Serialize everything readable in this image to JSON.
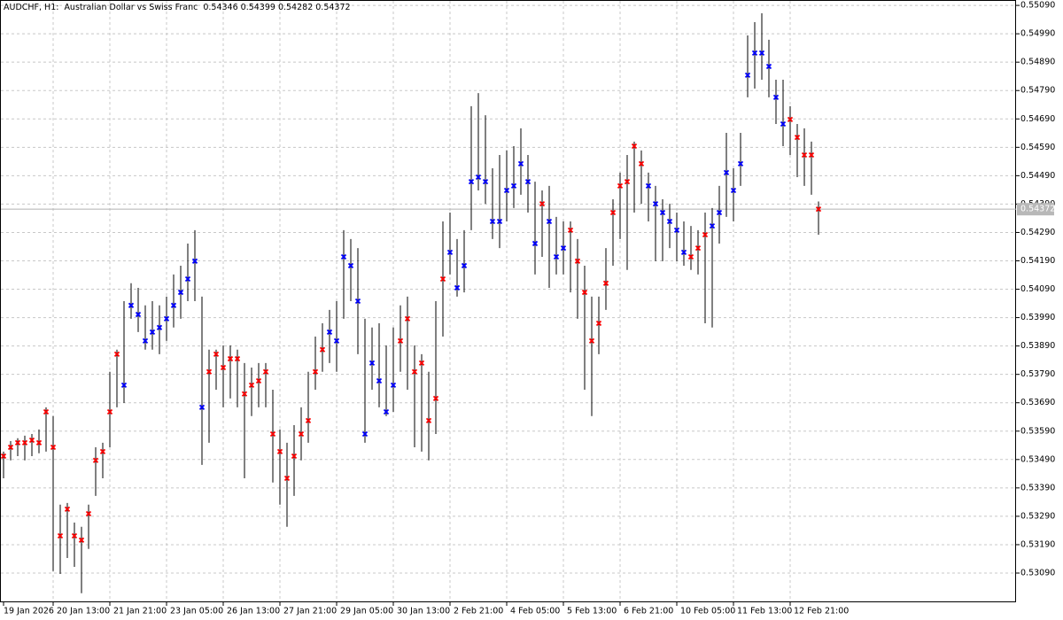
{
  "chart_data": {
    "type": "hl_bars",
    "symbol": "AUDCHF, H1:",
    "description": "Australian Dollar vs Swiss Franc",
    "ohlc": [
      0.54346,
      0.54399,
      0.54282,
      0.54372
    ],
    "last_price": 0.54372,
    "bar_color": "#000000",
    "grid": true,
    "ylim": [
      0.52987,
      0.55109
    ],
    "yticks": [
      {
        "value": 0.5309,
        "label": "0.53090"
      },
      {
        "value": 0.5319,
        "label": "0.53190"
      },
      {
        "value": 0.5329,
        "label": "0.53290"
      },
      {
        "value": 0.5339,
        "label": "0.53390"
      },
      {
        "value": 0.5349,
        "label": "0.53490"
      },
      {
        "value": 0.5359,
        "label": "0.53590"
      },
      {
        "value": 0.5369,
        "label": "0.53690"
      },
      {
        "value": 0.5379,
        "label": "0.53790"
      },
      {
        "value": 0.5389,
        "label": "0.53890"
      },
      {
        "value": 0.5399,
        "label": "0.53990"
      },
      {
        "value": 0.5409,
        "label": "0.54090"
      },
      {
        "value": 0.5419,
        "label": "0.54190"
      },
      {
        "value": 0.5429,
        "label": "0.54290"
      },
      {
        "value": 0.5439,
        "label": "0.54390"
      },
      {
        "value": 0.5449,
        "label": "0.54490"
      },
      {
        "value": 0.5459,
        "label": "0.54590"
      },
      {
        "value": 0.5469,
        "label": "0.54690"
      },
      {
        "value": 0.5479,
        "label": "0.54790"
      },
      {
        "value": 0.5489,
        "label": "0.54890"
      },
      {
        "value": 0.5499,
        "label": "0.54990"
      },
      {
        "value": 0.5509,
        "label": "0.55090"
      }
    ],
    "categories": [
      "19 Jan 2026",
      null,
      null,
      null,
      null,
      null,
      null,
      "20 Jan 13:00",
      null,
      null,
      null,
      null,
      null,
      null,
      null,
      "21 Jan 21:00",
      null,
      null,
      null,
      null,
      null,
      null,
      null,
      "23 Jan 05:00",
      null,
      null,
      null,
      null,
      null,
      null,
      null,
      "26 Jan 13:00",
      null,
      null,
      null,
      null,
      null,
      null,
      null,
      "27 Jan 21:00",
      null,
      null,
      null,
      null,
      null,
      null,
      null,
      "29 Jan 05:00",
      null,
      null,
      null,
      null,
      null,
      null,
      null,
      "30 Jan 13:00",
      null,
      null,
      null,
      null,
      null,
      null,
      null,
      "2 Feb 21:00",
      null,
      null,
      null,
      null,
      null,
      null,
      null,
      "4 Feb 05:00",
      null,
      null,
      null,
      null,
      null,
      null,
      null,
      "5 Feb 13:00",
      null,
      null,
      null,
      null,
      null,
      null,
      null,
      "6 Feb 21:00",
      null,
      null,
      null,
      null,
      null,
      null,
      null,
      "10 Feb 05:00",
      null,
      null,
      null,
      null,
      null,
      null,
      null,
      "11 Feb 13:00",
      null,
      null,
      null,
      null,
      null,
      null,
      null,
      "12 Feb 21:00",
      null,
      null,
      null,
      null
    ],
    "high": [
      0.53518,
      0.53555,
      0.53565,
      0.53574,
      0.5358,
      0.53596,
      0.53674,
      0.53643,
      0.53331,
      0.53337,
      0.53268,
      0.53253,
      0.53331,
      0.53533,
      0.53549,
      0.53799,
      0.53877,
      0.54048,
      0.54111,
      0.54095,
      0.54033,
      0.54048,
      0.54033,
      0.54064,
      0.54142,
      0.54173,
      0.54251,
      0.54298,
      0.54064,
      0.53877,
      0.53877,
      0.53892,
      0.53892,
      0.53877,
      0.5383,
      0.53814,
      0.5383,
      0.5383,
      0.53736,
      0.53596,
      0.53549,
      0.53611,
      0.53674,
      0.53799,
      0.53923,
      0.5397,
      0.54017,
      0.54048,
      0.54298,
      0.54267,
      0.54235,
      0.53986,
      0.53955,
      0.5397,
      0.53892,
      0.53955,
      0.54033,
      0.54064,
      0.53892,
      0.53861,
      0.53799,
      0.54048,
      0.54329,
      0.5436,
      0.54267,
      0.54298,
      0.54735,
      0.54781,
      0.54703,
      0.54516,
      0.54563,
      0.54579,
      0.54594,
      0.54657,
      0.54563,
      0.54469,
      0.54438,
      0.54454,
      0.54345,
      0.54329,
      0.54329,
      0.54267,
      0.54173,
      0.54064,
      0.54064,
      0.54235,
      0.54407,
      0.54501,
      0.54563,
      0.5461,
      0.54579,
      0.54501,
      0.54454,
      0.54407,
      0.54391,
      0.5436,
      0.54329,
      0.54313,
      0.54298,
      0.5436,
      0.54376,
      0.54454,
      0.54641,
      0.54516,
      0.54641,
      0.54984,
      0.55031,
      0.55062,
      0.54969,
      0.54828,
      0.54828,
      0.54735,
      0.54672,
      0.54657,
      0.5461,
      0.54399
    ],
    "low": [
      0.53424,
      0.53487,
      0.53502,
      0.53487,
      0.53502,
      0.53512,
      0.53518,
      0.53097,
      0.53087,
      0.53143,
      0.53112,
      0.53019,
      0.53175,
      0.53362,
      0.53424,
      0.53533,
      0.53674,
      0.53689,
      0.53986,
      0.53939,
      0.53877,
      0.53877,
      0.53861,
      0.53908,
      0.53955,
      0.53986,
      0.54048,
      0.54048,
      0.53471,
      0.53549,
      0.53736,
      0.53674,
      0.53705,
      0.53674,
      0.53424,
      0.53643,
      0.53674,
      0.53674,
      0.53409,
      0.53331,
      0.53253,
      0.53362,
      0.53487,
      0.53549,
      0.53736,
      0.53799,
      0.5383,
      0.53799,
      0.53986,
      0.54048,
      0.53861,
      0.53549,
      0.53736,
      0.53674,
      0.53643,
      0.53658,
      0.53799,
      0.53736,
      0.53533,
      0.53518,
      0.53487,
      0.5358,
      0.53923,
      0.54142,
      0.54064,
      0.54079,
      0.54298,
      0.54438,
      0.54391,
      0.54267,
      0.54235,
      0.54329,
      0.54376,
      0.54423,
      0.5436,
      0.54142,
      0.54204,
      0.54095,
      0.54142,
      0.54142,
      0.54079,
      0.53986,
      0.53736,
      0.53643,
      0.53861,
      0.54017,
      0.54173,
      0.54267,
      0.54158,
      0.5436,
      0.54391,
      0.54329,
      0.54189,
      0.54189,
      0.54235,
      0.54189,
      0.54173,
      0.54158,
      0.54142,
      0.5397,
      0.53955,
      0.54251,
      0.54345,
      0.54329,
      0.54454,
      0.54766,
      0.54797,
      0.54828,
      0.54766,
      0.54672,
      0.54594,
      0.54563,
      0.54485,
      0.54454,
      0.54423,
      0.54282
    ],
    "close": [
      0.53502,
      0.53533,
      0.53549,
      0.53549,
      0.53558,
      0.53549,
      0.53658,
      0.53533,
      0.53221,
      0.53315,
      0.53221,
      0.53206,
      0.53299,
      0.53487,
      0.53518,
      0.53658,
      0.53861,
      0.53752,
      0.54033,
      0.54001,
      0.53908,
      0.53939,
      0.53955,
      0.53986,
      0.54033,
      0.54079,
      0.54126,
      0.54189,
      0.53674,
      0.53799,
      0.53861,
      0.53814,
      0.53845,
      0.53845,
      0.53721,
      0.53752,
      0.53767,
      0.53799,
      0.5358,
      0.53518,
      0.53424,
      0.53502,
      0.5358,
      0.53627,
      0.53799,
      0.53877,
      0.53939,
      0.53908,
      0.54204,
      0.54173,
      0.54048,
      0.5358,
      0.5383,
      0.53767,
      0.53658,
      0.53752,
      0.53908,
      0.53986,
      0.53799,
      0.5383,
      0.53627,
      0.53705,
      0.54126,
      0.5422,
      0.54095,
      0.54173,
      0.54469,
      0.54485,
      0.54469,
      0.54329,
      0.54329,
      0.54438,
      0.54454,
      0.54532,
      0.54469,
      0.54251,
      0.54391,
      0.54329,
      0.54204,
      0.54235,
      0.54298,
      0.54189,
      0.54079,
      0.53908,
      0.5397,
      0.54111,
      0.5436,
      0.54454,
      0.54469,
      0.54594,
      0.54532,
      0.54454,
      0.54391,
      0.5436,
      0.54329,
      0.54298,
      0.5422,
      0.54204,
      0.54235,
      0.54282,
      0.54313,
      0.5436,
      0.54501,
      0.54438,
      0.54532,
      0.54844,
      0.54922,
      0.54922,
      0.54875,
      0.54766,
      0.54672,
      0.54688,
      0.54625,
      0.54563,
      0.54563,
      0.54372
    ],
    "marker_colors": [
      "#f00",
      "#f00",
      "#f00",
      "#f00",
      "#f00",
      "#f00",
      "#f00",
      "#f00",
      "#f00",
      "#f00",
      "#f00",
      "#f00",
      "#f00",
      "#f00",
      "#f00",
      "#f00",
      "#f00",
      "#00f",
      "#00f",
      "#00f",
      "#00f",
      "#00f",
      "#00f",
      "#00f",
      "#00f",
      "#00f",
      "#00f",
      "#00f",
      "#00f",
      "#f00",
      "#f00",
      "#f00",
      "#f00",
      "#f00",
      "#f00",
      "#f00",
      "#f00",
      "#f00",
      "#f00",
      "#f00",
      "#f00",
      "#f00",
      "#f00",
      "#f00",
      "#f00",
      "#f00",
      "#00f",
      "#00f",
      "#00f",
      "#00f",
      "#00f",
      "#00f",
      "#00f",
      "#00f",
      "#00f",
      "#00f",
      "#f00",
      "#f00",
      "#f00",
      "#f00",
      "#f00",
      "#f00",
      "#f00",
      "#00f",
      "#00f",
      "#00f",
      "#00f",
      "#00f",
      "#00f",
      "#00f",
      "#00f",
      "#00f",
      "#00f",
      "#00f",
      "#00f",
      "#00f",
      "#f00",
      "#00f",
      "#00f",
      "#00f",
      "#f00",
      "#f00",
      "#f00",
      "#f00",
      "#f00",
      "#f00",
      "#f00",
      "#f00",
      "#f00",
      "#f00",
      "#f00",
      "#00f",
      "#00f",
      "#00f",
      "#00f",
      "#00f",
      "#00f",
      "#f00",
      "#f00",
      "#f00",
      "#00f",
      "#00f",
      "#00f",
      "#00f",
      "#00f",
      "#00f",
      "#00f",
      "#00f",
      "#00f",
      "#00f",
      "#00f",
      "#f00",
      "#f00",
      "#f00",
      "#f00",
      "#f00"
    ]
  }
}
